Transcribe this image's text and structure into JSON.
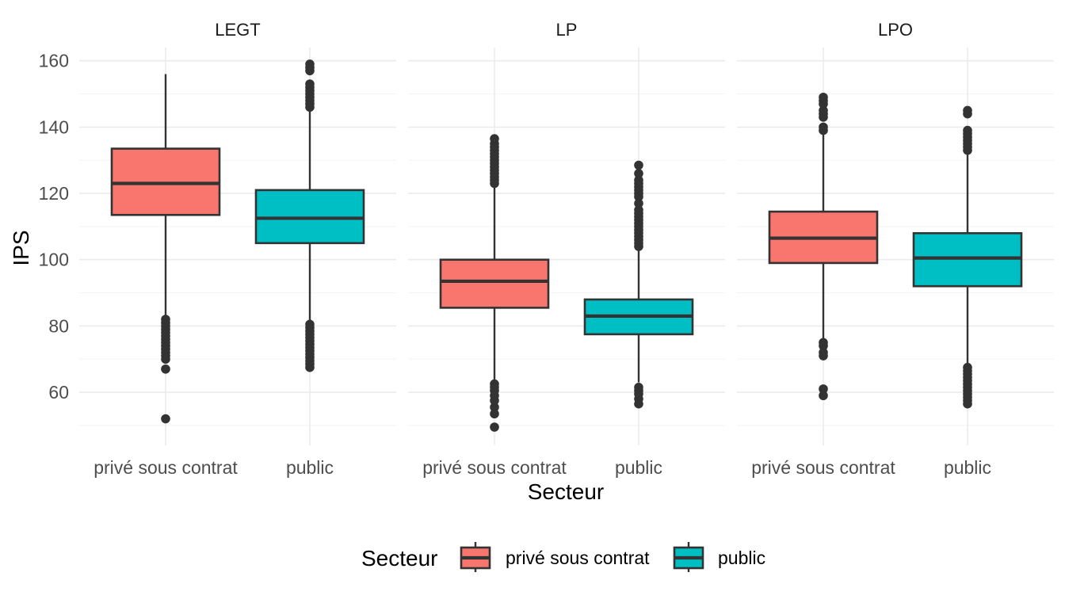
{
  "chart_data": {
    "type": "boxplot",
    "facets": [
      "LEGT",
      "LP",
      "LPO"
    ],
    "categories": [
      "privé sous contrat",
      "public"
    ],
    "xlabel": "Secteur",
    "ylabel": "IPS",
    "ylim": [
      44,
      164
    ],
    "y_ticks": [
      60,
      80,
      100,
      120,
      140,
      160
    ],
    "grid": true,
    "legend": {
      "title": "Secteur",
      "position": "bottom",
      "entries": [
        {
          "label": "privé sous contrat",
          "color": "#F8766D"
        },
        {
          "label": "public",
          "color": "#00BFC4"
        }
      ]
    },
    "colors": {
      "privé sous contrat": "#F8766D",
      "public": "#00BFC4"
    },
    "series": [
      {
        "facet": "LEGT",
        "category": "privé sous contrat",
        "whisker_low": 83,
        "q1": 113.5,
        "median": 123,
        "q3": 133.5,
        "whisker_high": 156,
        "outliers": [
          52,
          67,
          70,
          71,
          72,
          73,
          74,
          75,
          76,
          77,
          78,
          79,
          80,
          81,
          82
        ]
      },
      {
        "facet": "LEGT",
        "category": "public",
        "whisker_low": 81,
        "q1": 105,
        "median": 112.5,
        "q3": 121,
        "whisker_high": 145,
        "outliers": [
          67.5,
          68.5,
          69.5,
          70.5,
          71.5,
          72.5,
          73.5,
          74.5,
          75.5,
          76.5,
          77.5,
          78.5,
          79.5,
          80.5,
          146,
          147,
          148,
          149,
          150,
          151,
          152,
          153,
          157,
          158,
          159
        ]
      },
      {
        "facet": "LP",
        "category": "privé sous contrat",
        "whisker_low": 63,
        "q1": 85.5,
        "median": 93.5,
        "q3": 100,
        "whisker_high": 122,
        "outliers": [
          49.5,
          53.5,
          55.5,
          57.5,
          59,
          60.5,
          61.5,
          62.5,
          123,
          124,
          125,
          126,
          127,
          128,
          129,
          130,
          131,
          132,
          133,
          134,
          135,
          136.5
        ]
      },
      {
        "facet": "LP",
        "category": "public",
        "whisker_low": 63,
        "q1": 77.5,
        "median": 83,
        "q3": 88,
        "whisker_high": 103,
        "outliers": [
          56.5,
          58,
          59.5,
          60.5,
          61.5,
          104,
          105,
          106,
          107,
          108,
          109,
          110,
          111,
          112,
          113,
          114,
          115,
          117,
          119,
          120,
          121,
          122,
          123,
          124,
          126,
          128.5
        ]
      },
      {
        "facet": "LPO",
        "category": "privé sous contrat",
        "whisker_low": 76,
        "q1": 99,
        "median": 106.5,
        "q3": 114.5,
        "whisker_high": 138,
        "outliers": [
          59,
          61,
          71,
          72,
          74,
          75,
          139,
          140,
          143,
          144,
          145,
          147,
          148,
          149
        ]
      },
      {
        "facet": "LPO",
        "category": "public",
        "whisker_low": 68,
        "q1": 92,
        "median": 100.5,
        "q3": 108,
        "whisker_high": 132,
        "outliers": [
          56.5,
          57.5,
          58.5,
          59.5,
          60.5,
          61.5,
          62.5,
          63.5,
          64.5,
          65.5,
          66.5,
          67.5,
          133,
          134,
          135,
          136,
          137,
          138,
          139,
          144,
          145
        ]
      }
    ]
  }
}
